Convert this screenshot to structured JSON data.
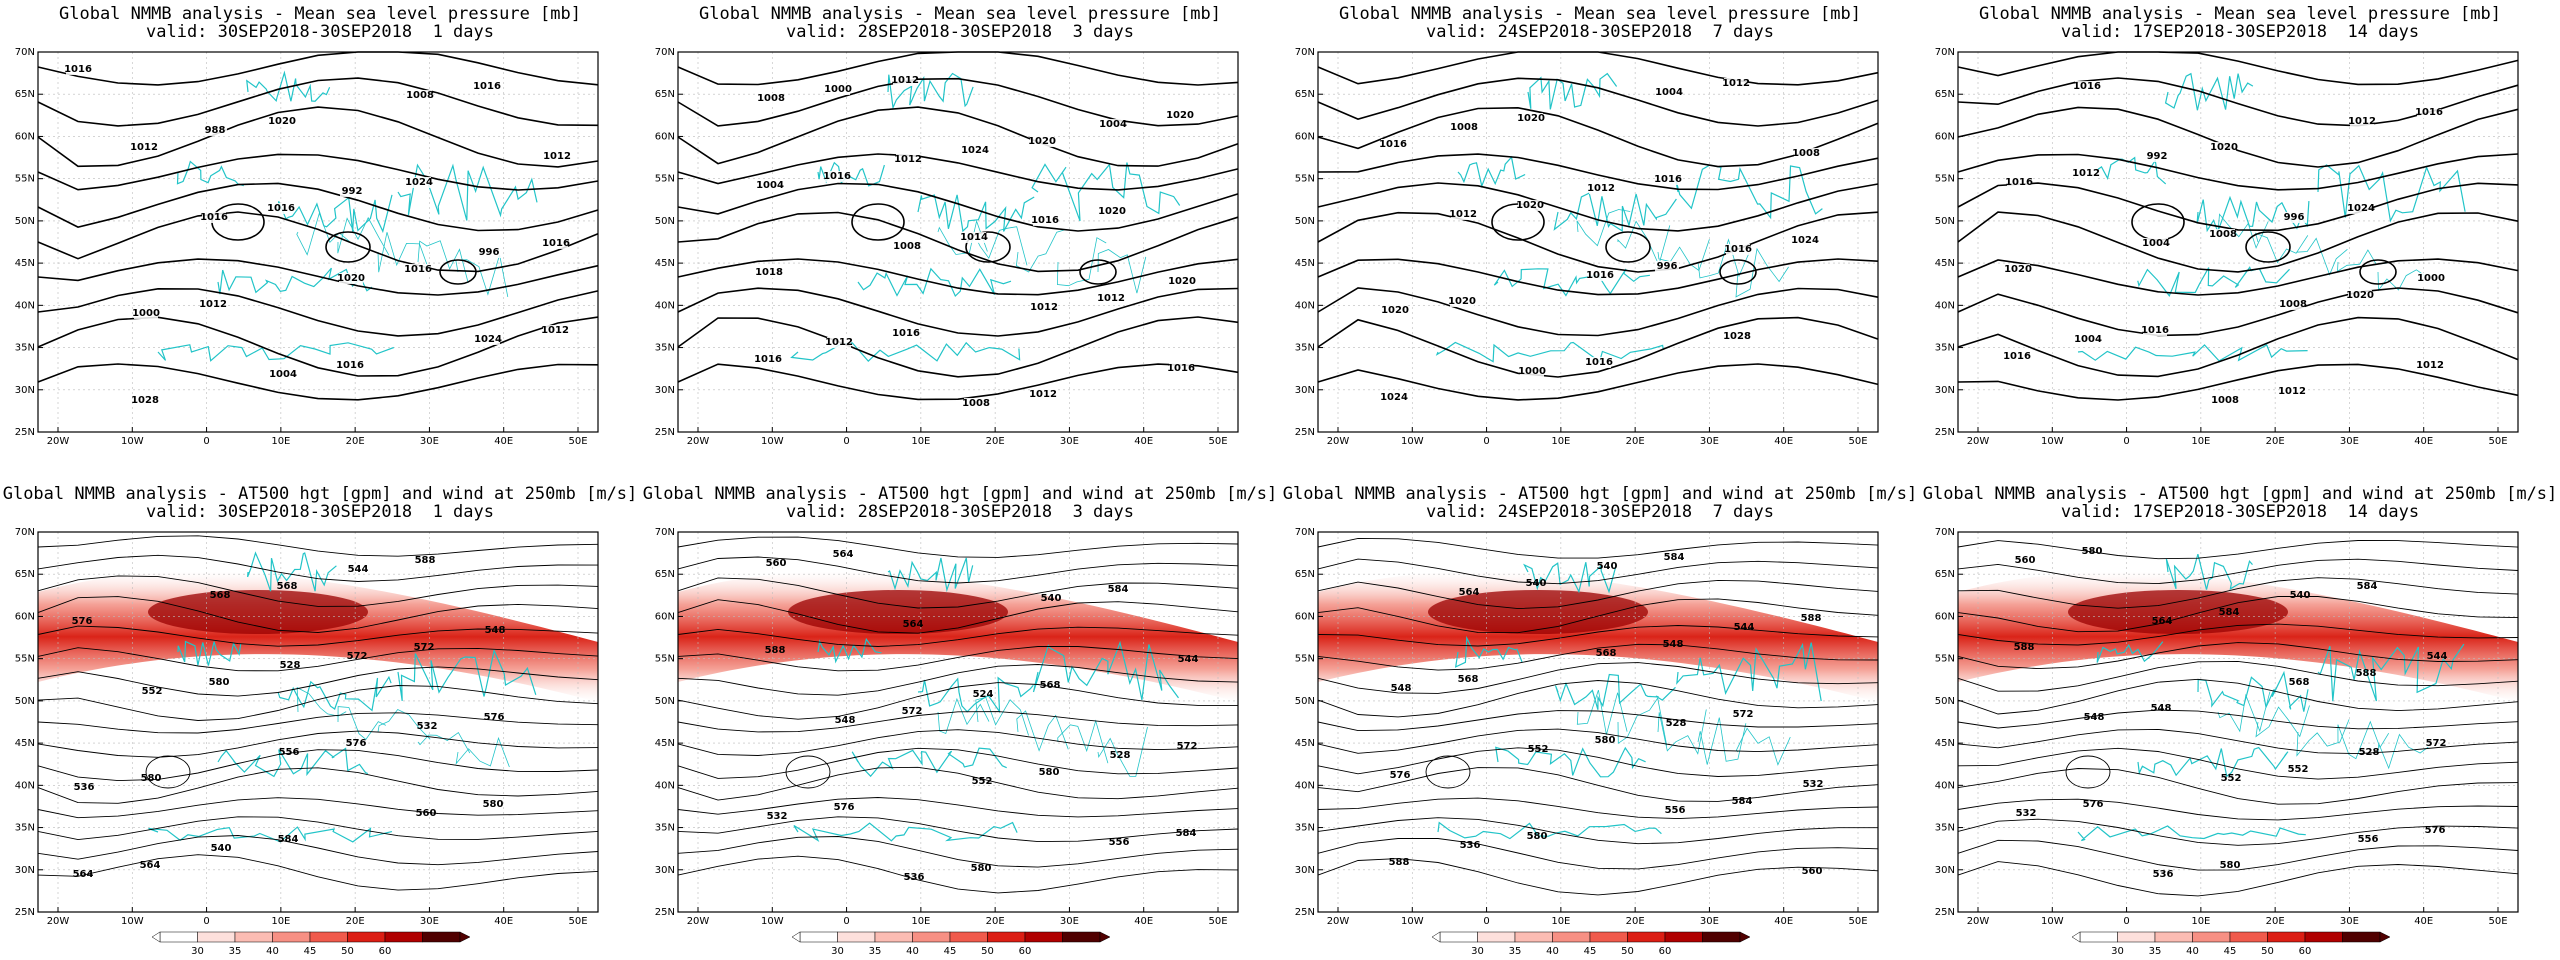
{
  "panels": [
    {
      "title": "Global NMMB analysis - Mean sea level pressure [mb]",
      "valid": "valid: 30SEP2018-30SEP2018  1 days",
      "type": "mslp",
      "contour_labels": [
        "1016",
        "988",
        "992",
        "996",
        "1000",
        "1004",
        "1008",
        "1012",
        "1016",
        "1020",
        "1024",
        "1028",
        "1020",
        "1024",
        "1016",
        "1012",
        "1016",
        "1016",
        "1012",
        "1016",
        "1016",
        "1012"
      ]
    },
    {
      "title": "Global NMMB analysis - Mean sea level pressure [mb]",
      "valid": "valid: 28SEP2018-30SEP2018  3 days",
      "type": "mslp",
      "contour_labels": [
        "1008",
        "1012",
        "1016",
        "1020",
        "1012",
        "1008",
        "1004",
        "1004",
        "1008",
        "1012",
        "1016",
        "1000",
        "1024",
        "1020",
        "1018",
        "1016",
        "1012",
        "1020",
        "1016",
        "1014",
        "1012",
        "1016",
        "1012",
        "1020"
      ]
    },
    {
      "title": "Global NMMB analysis - Mean sea level pressure [mb]",
      "valid": "valid: 24SEP2018-30SEP2018  7 days",
      "type": "mslp",
      "contour_labels": [
        "1008",
        "1012",
        "1016",
        "1020",
        "1000",
        "1004",
        "1008",
        "1012",
        "1016",
        "1028",
        "1024",
        "1020",
        "1016",
        "1024",
        "1020",
        "1016",
        "1012",
        "1016",
        "1020",
        "996"
      ]
    },
    {
      "title": "Global NMMB analysis - Mean sea level pressure [mb]",
      "valid": "valid: 17SEP2018-30SEP2018  14 days",
      "type": "mslp",
      "contour_labels": [
        "992",
        "996",
        "1000",
        "1004",
        "1008",
        "1012",
        "1016",
        "1004",
        "1008",
        "1012",
        "1016",
        "1020",
        "1024",
        "1020",
        "1016",
        "1012",
        "1016",
        "1012",
        "1008",
        "1020",
        "1016"
      ]
    },
    {
      "title": "Global NMMB analysis - AT500 hgt [gpm] and wind at 250mb [m/s]",
      "valid": "valid: 30SEP2018-30SEP2018  1 days",
      "type": "z500",
      "contour_labels": [
        "528",
        "532",
        "536",
        "540",
        "544",
        "548",
        "552",
        "556",
        "560",
        "564",
        "568",
        "572",
        "576",
        "580",
        "584",
        "588",
        "576",
        "580",
        "576",
        "580",
        "564",
        "568",
        "572"
      ]
    },
    {
      "title": "Global NMMB analysis - AT500 hgt [gpm] and wind at 250mb [m/s]",
      "valid": "valid: 28SEP2018-30SEP2018  3 days",
      "type": "z500",
      "contour_labels": [
        "524",
        "528",
        "532",
        "536",
        "540",
        "544",
        "548",
        "552",
        "556",
        "560",
        "564",
        "568",
        "572",
        "576",
        "580",
        "584",
        "588",
        "572",
        "580",
        "584",
        "564"
      ]
    },
    {
      "title": "Global NMMB analysis - AT500 hgt [gpm] and wind at 250mb [m/s]",
      "valid": "valid: 24SEP2018-30SEP2018  7 days",
      "type": "z500",
      "contour_labels": [
        "528",
        "532",
        "536",
        "540",
        "544",
        "548",
        "552",
        "556",
        "560",
        "564",
        "568",
        "572",
        "576",
        "580",
        "584",
        "588",
        "568",
        "580",
        "584",
        "588",
        "540",
        "548"
      ]
    },
    {
      "title": "Global NMMB analysis - AT500 hgt [gpm] and wind at 250mb [m/s]",
      "valid": "valid: 17SEP2018-30SEP2018  14 days",
      "type": "z500",
      "contour_labels": [
        "528",
        "532",
        "536",
        "540",
        "544",
        "548",
        "552",
        "556",
        "560",
        "564",
        "568",
        "572",
        "576",
        "580",
        "584",
        "588",
        "548",
        "552",
        "576",
        "580",
        "584",
        "588"
      ]
    }
  ],
  "axes": {
    "lat_labels": [
      "70N",
      "65N",
      "60N",
      "55N",
      "50N",
      "45N",
      "40N",
      "35N",
      "30N",
      "25N"
    ],
    "lon_labels": [
      "20W",
      "10W",
      "0",
      "10E",
      "20E",
      "30E",
      "40E",
      "50E"
    ]
  },
  "colorbar": {
    "ticks": [
      "30",
      "35",
      "40",
      "45",
      "50",
      "60"
    ],
    "colors": [
      "#ffffff",
      "#fde0dc",
      "#fbbcb3",
      "#f79084",
      "#f05a4c",
      "#dc1e14",
      "#b00000",
      "#500000"
    ]
  },
  "style": {
    "contour_color": "#000000",
    "coast_color": "#22c4c8",
    "grid_color": "#bbbbbb"
  }
}
